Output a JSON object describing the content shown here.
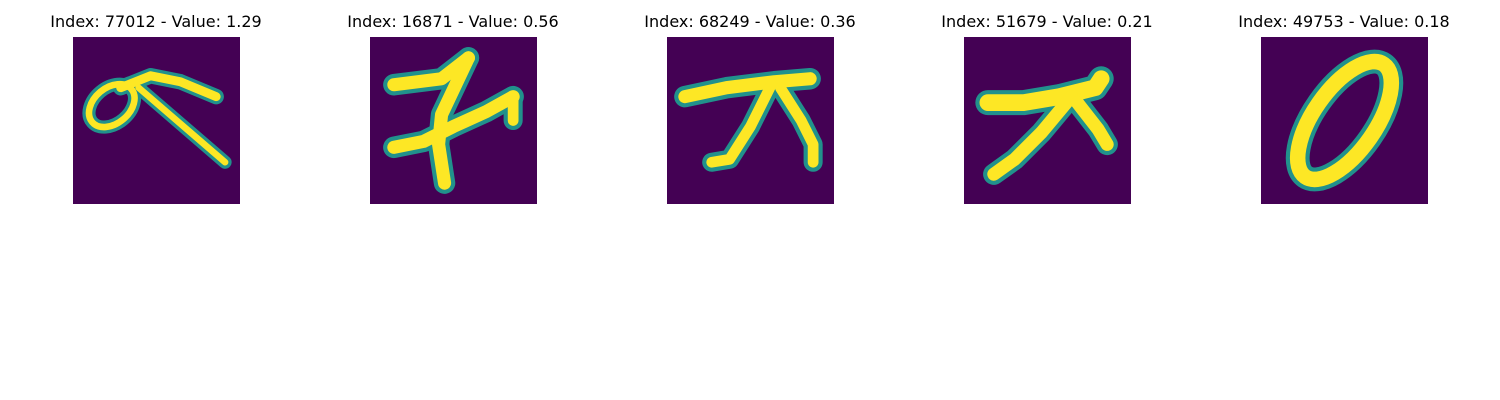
{
  "colors": {
    "background": "#440154",
    "mid": "#21918c",
    "foreground": "#fde725"
  },
  "panels": [
    {
      "title": "Index: 77012 - Value: 1.29",
      "glyph": "alpha-like-stroke"
    },
    {
      "title": "Index: 16871 - Value: 0.56",
      "glyph": "crossed-seven-stroke"
    },
    {
      "title": "Index: 68249 - Value: 0.36",
      "glyph": "forked-seven-stroke"
    },
    {
      "title": "Index: 51679 - Value: 0.21",
      "glyph": "forked-seven-stroke"
    },
    {
      "title": "Index: 49753 - Value: 0.18",
      "glyph": "zero-stroke"
    }
  ]
}
